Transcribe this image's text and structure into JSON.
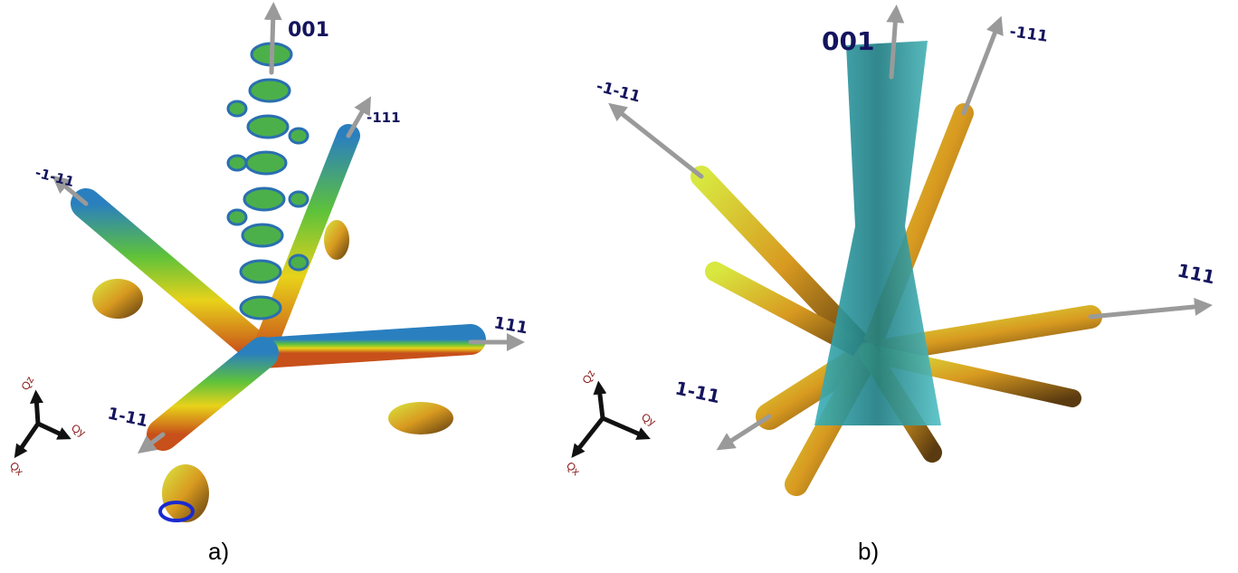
{
  "panels": [
    {
      "label": "a)",
      "axes": {
        "z": "001",
        "a": "-111",
        "b": "-1-11",
        "c": "111",
        "d": "1-11"
      },
      "triad": {
        "z": "Qz",
        "y": "Qy",
        "x": "Qx"
      }
    },
    {
      "label": "b)",
      "axes": {
        "z": "001",
        "a": "-111",
        "b": "-1-11",
        "c": "111",
        "d": "1-11"
      },
      "triad": {
        "z": "Qz",
        "y": "Qy",
        "x": "Qx"
      }
    }
  ]
}
